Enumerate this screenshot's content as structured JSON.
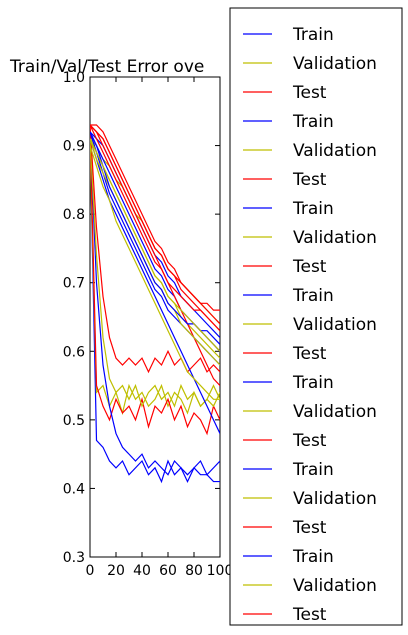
{
  "chart_data": {
    "type": "line",
    "title": "Train/Val/Test Error ove",
    "xlabel": "",
    "ylabel": "",
    "xlim": [
      0,
      100
    ],
    "ylim": [
      0.3,
      1.0
    ],
    "x_ticks": [
      "0",
      "20",
      "40",
      "60",
      "80",
      "100"
    ],
    "y_ticks": [
      "0.3",
      "0.4",
      "0.5",
      "0.6",
      "0.7",
      "0.8",
      "0.9",
      "1.0"
    ],
    "grid": false,
    "legend_position": "right (outside plot)",
    "colors": {
      "Train": "#0000ff",
      "Validation": "#bfbf00",
      "Test": "#ff0000"
    },
    "legend": [
      "Train",
      "Validation",
      "Test",
      "Train",
      "Validation",
      "Test",
      "Train",
      "Validation",
      "Test",
      "Train",
      "Validation",
      "Test",
      "Train",
      "Validation",
      "Test",
      "Train",
      "Validation",
      "Test",
      "Train",
      "Validation",
      "Test"
    ],
    "x": [
      0,
      5,
      10,
      15,
      20,
      25,
      30,
      35,
      40,
      45,
      50,
      55,
      60,
      65,
      70,
      75,
      80,
      85,
      90,
      95,
      100
    ],
    "series": [
      {
        "name": "Train",
        "values": [
          0.91,
          0.47,
          0.46,
          0.44,
          0.43,
          0.44,
          0.42,
          0.43,
          0.44,
          0.42,
          0.43,
          0.41,
          0.44,
          0.42,
          0.43,
          0.41,
          0.43,
          0.42,
          0.42,
          0.41,
          0.41
        ]
      },
      {
        "name": "Validation",
        "values": [
          0.9,
          0.54,
          0.55,
          0.52,
          0.54,
          0.51,
          0.55,
          0.53,
          0.54,
          0.52,
          0.53,
          0.55,
          0.52,
          0.54,
          0.53,
          0.51,
          0.54,
          0.52,
          0.53,
          0.55,
          0.53
        ]
      },
      {
        "name": "Test",
        "values": [
          0.93,
          0.55,
          0.52,
          0.5,
          0.53,
          0.51,
          0.52,
          0.5,
          0.53,
          0.49,
          0.52,
          0.51,
          0.53,
          0.5,
          0.52,
          0.49,
          0.51,
          0.5,
          0.48,
          0.52,
          0.5
        ]
      },
      {
        "name": "Train",
        "values": [
          0.92,
          0.7,
          0.58,
          0.52,
          0.48,
          0.46,
          0.45,
          0.44,
          0.45,
          0.43,
          0.44,
          0.43,
          0.42,
          0.44,
          0.43,
          0.42,
          0.43,
          0.44,
          0.42,
          0.43,
          0.44
        ]
      },
      {
        "name": "Validation",
        "values": [
          0.91,
          0.74,
          0.62,
          0.56,
          0.54,
          0.55,
          0.53,
          0.55,
          0.52,
          0.54,
          0.55,
          0.53,
          0.54,
          0.52,
          0.55,
          0.53,
          0.54,
          0.52,
          0.53,
          0.52,
          0.54
        ]
      },
      {
        "name": "Test",
        "values": [
          0.93,
          0.78,
          0.68,
          0.62,
          0.59,
          0.58,
          0.59,
          0.58,
          0.59,
          0.57,
          0.59,
          0.58,
          0.6,
          0.58,
          0.59,
          0.57,
          0.58,
          0.59,
          0.57,
          0.58,
          0.57
        ]
      },
      {
        "name": "Train",
        "values": [
          0.92,
          0.91,
          0.9,
          0.88,
          0.86,
          0.84,
          0.82,
          0.8,
          0.78,
          0.76,
          0.74,
          0.73,
          0.71,
          0.7,
          0.68,
          0.67,
          0.66,
          0.65,
          0.64,
          0.63,
          0.62
        ]
      },
      {
        "name": "Validation",
        "values": [
          0.91,
          0.9,
          0.88,
          0.87,
          0.85,
          0.84,
          0.82,
          0.8,
          0.79,
          0.77,
          0.75,
          0.74,
          0.72,
          0.71,
          0.7,
          0.69,
          0.68,
          0.67,
          0.66,
          0.65,
          0.64
        ]
      },
      {
        "name": "Test",
        "values": [
          0.93,
          0.93,
          0.92,
          0.9,
          0.88,
          0.86,
          0.84,
          0.82,
          0.8,
          0.78,
          0.76,
          0.75,
          0.73,
          0.72,
          0.7,
          0.69,
          0.68,
          0.67,
          0.66,
          0.65,
          0.64
        ]
      },
      {
        "name": "Train",
        "values": [
          0.92,
          0.9,
          0.88,
          0.86,
          0.84,
          0.82,
          0.8,
          0.78,
          0.76,
          0.74,
          0.72,
          0.71,
          0.69,
          0.68,
          0.66,
          0.65,
          0.64,
          0.63,
          0.62,
          0.61,
          0.6
        ]
      },
      {
        "name": "Validation",
        "values": [
          0.91,
          0.89,
          0.87,
          0.85,
          0.83,
          0.81,
          0.79,
          0.77,
          0.75,
          0.73,
          0.71,
          0.7,
          0.68,
          0.67,
          0.65,
          0.64,
          0.63,
          0.62,
          0.61,
          0.6,
          0.59
        ]
      },
      {
        "name": "Test",
        "values": [
          0.93,
          0.92,
          0.91,
          0.89,
          0.87,
          0.85,
          0.83,
          0.81,
          0.79,
          0.77,
          0.75,
          0.74,
          0.72,
          0.71,
          0.69,
          0.68,
          0.67,
          0.66,
          0.65,
          0.64,
          0.63
        ]
      },
      {
        "name": "Train",
        "values": [
          0.91,
          0.88,
          0.85,
          0.82,
          0.8,
          0.78,
          0.76,
          0.74,
          0.72,
          0.7,
          0.68,
          0.66,
          0.64,
          0.62,
          0.6,
          0.58,
          0.56,
          0.54,
          0.52,
          0.5,
          0.48
        ]
      },
      {
        "name": "Validation",
        "values": [
          0.9,
          0.87,
          0.84,
          0.82,
          0.79,
          0.77,
          0.75,
          0.73,
          0.71,
          0.69,
          0.67,
          0.65,
          0.63,
          0.61,
          0.59,
          0.57,
          0.56,
          0.55,
          0.54,
          0.53,
          0.53
        ]
      },
      {
        "name": "Test",
        "values": [
          0.93,
          0.92,
          0.9,
          0.88,
          0.86,
          0.84,
          0.82,
          0.8,
          0.78,
          0.76,
          0.74,
          0.72,
          0.7,
          0.68,
          0.66,
          0.64,
          0.62,
          0.6,
          0.58,
          0.56,
          0.55
        ]
      },
      {
        "name": "Train",
        "values": [
          0.92,
          0.89,
          0.86,
          0.83,
          0.81,
          0.79,
          0.77,
          0.75,
          0.73,
          0.71,
          0.69,
          0.68,
          0.66,
          0.65,
          0.64,
          0.63,
          0.62,
          0.61,
          0.6,
          0.59,
          0.58
        ]
      },
      {
        "name": "Validation",
        "values": [
          0.91,
          0.88,
          0.86,
          0.84,
          0.82,
          0.8,
          0.78,
          0.76,
          0.74,
          0.72,
          0.7,
          0.69,
          0.67,
          0.66,
          0.64,
          0.63,
          0.62,
          0.61,
          0.6,
          0.59,
          0.58
        ]
      },
      {
        "name": "Test",
        "values": [
          0.93,
          0.91,
          0.89,
          0.87,
          0.85,
          0.83,
          0.81,
          0.79,
          0.77,
          0.75,
          0.73,
          0.72,
          0.7,
          0.69,
          0.68,
          0.67,
          0.66,
          0.66,
          0.65,
          0.64,
          0.63
        ]
      },
      {
        "name": "Train",
        "values": [
          0.92,
          0.9,
          0.87,
          0.84,
          0.82,
          0.8,
          0.78,
          0.76,
          0.74,
          0.72,
          0.7,
          0.69,
          0.67,
          0.66,
          0.65,
          0.64,
          0.64,
          0.63,
          0.63,
          0.62,
          0.61
        ]
      },
      {
        "name": "Validation",
        "values": [
          0.91,
          0.89,
          0.87,
          0.85,
          0.83,
          0.81,
          0.79,
          0.77,
          0.75,
          0.73,
          0.71,
          0.7,
          0.68,
          0.67,
          0.66,
          0.65,
          0.64,
          0.63,
          0.62,
          0.61,
          0.6
        ]
      },
      {
        "name": "Test",
        "values": [
          0.93,
          0.92,
          0.91,
          0.89,
          0.87,
          0.85,
          0.83,
          0.81,
          0.79,
          0.77,
          0.75,
          0.74,
          0.72,
          0.71,
          0.7,
          0.69,
          0.68,
          0.67,
          0.67,
          0.66,
          0.66
        ]
      }
    ]
  }
}
